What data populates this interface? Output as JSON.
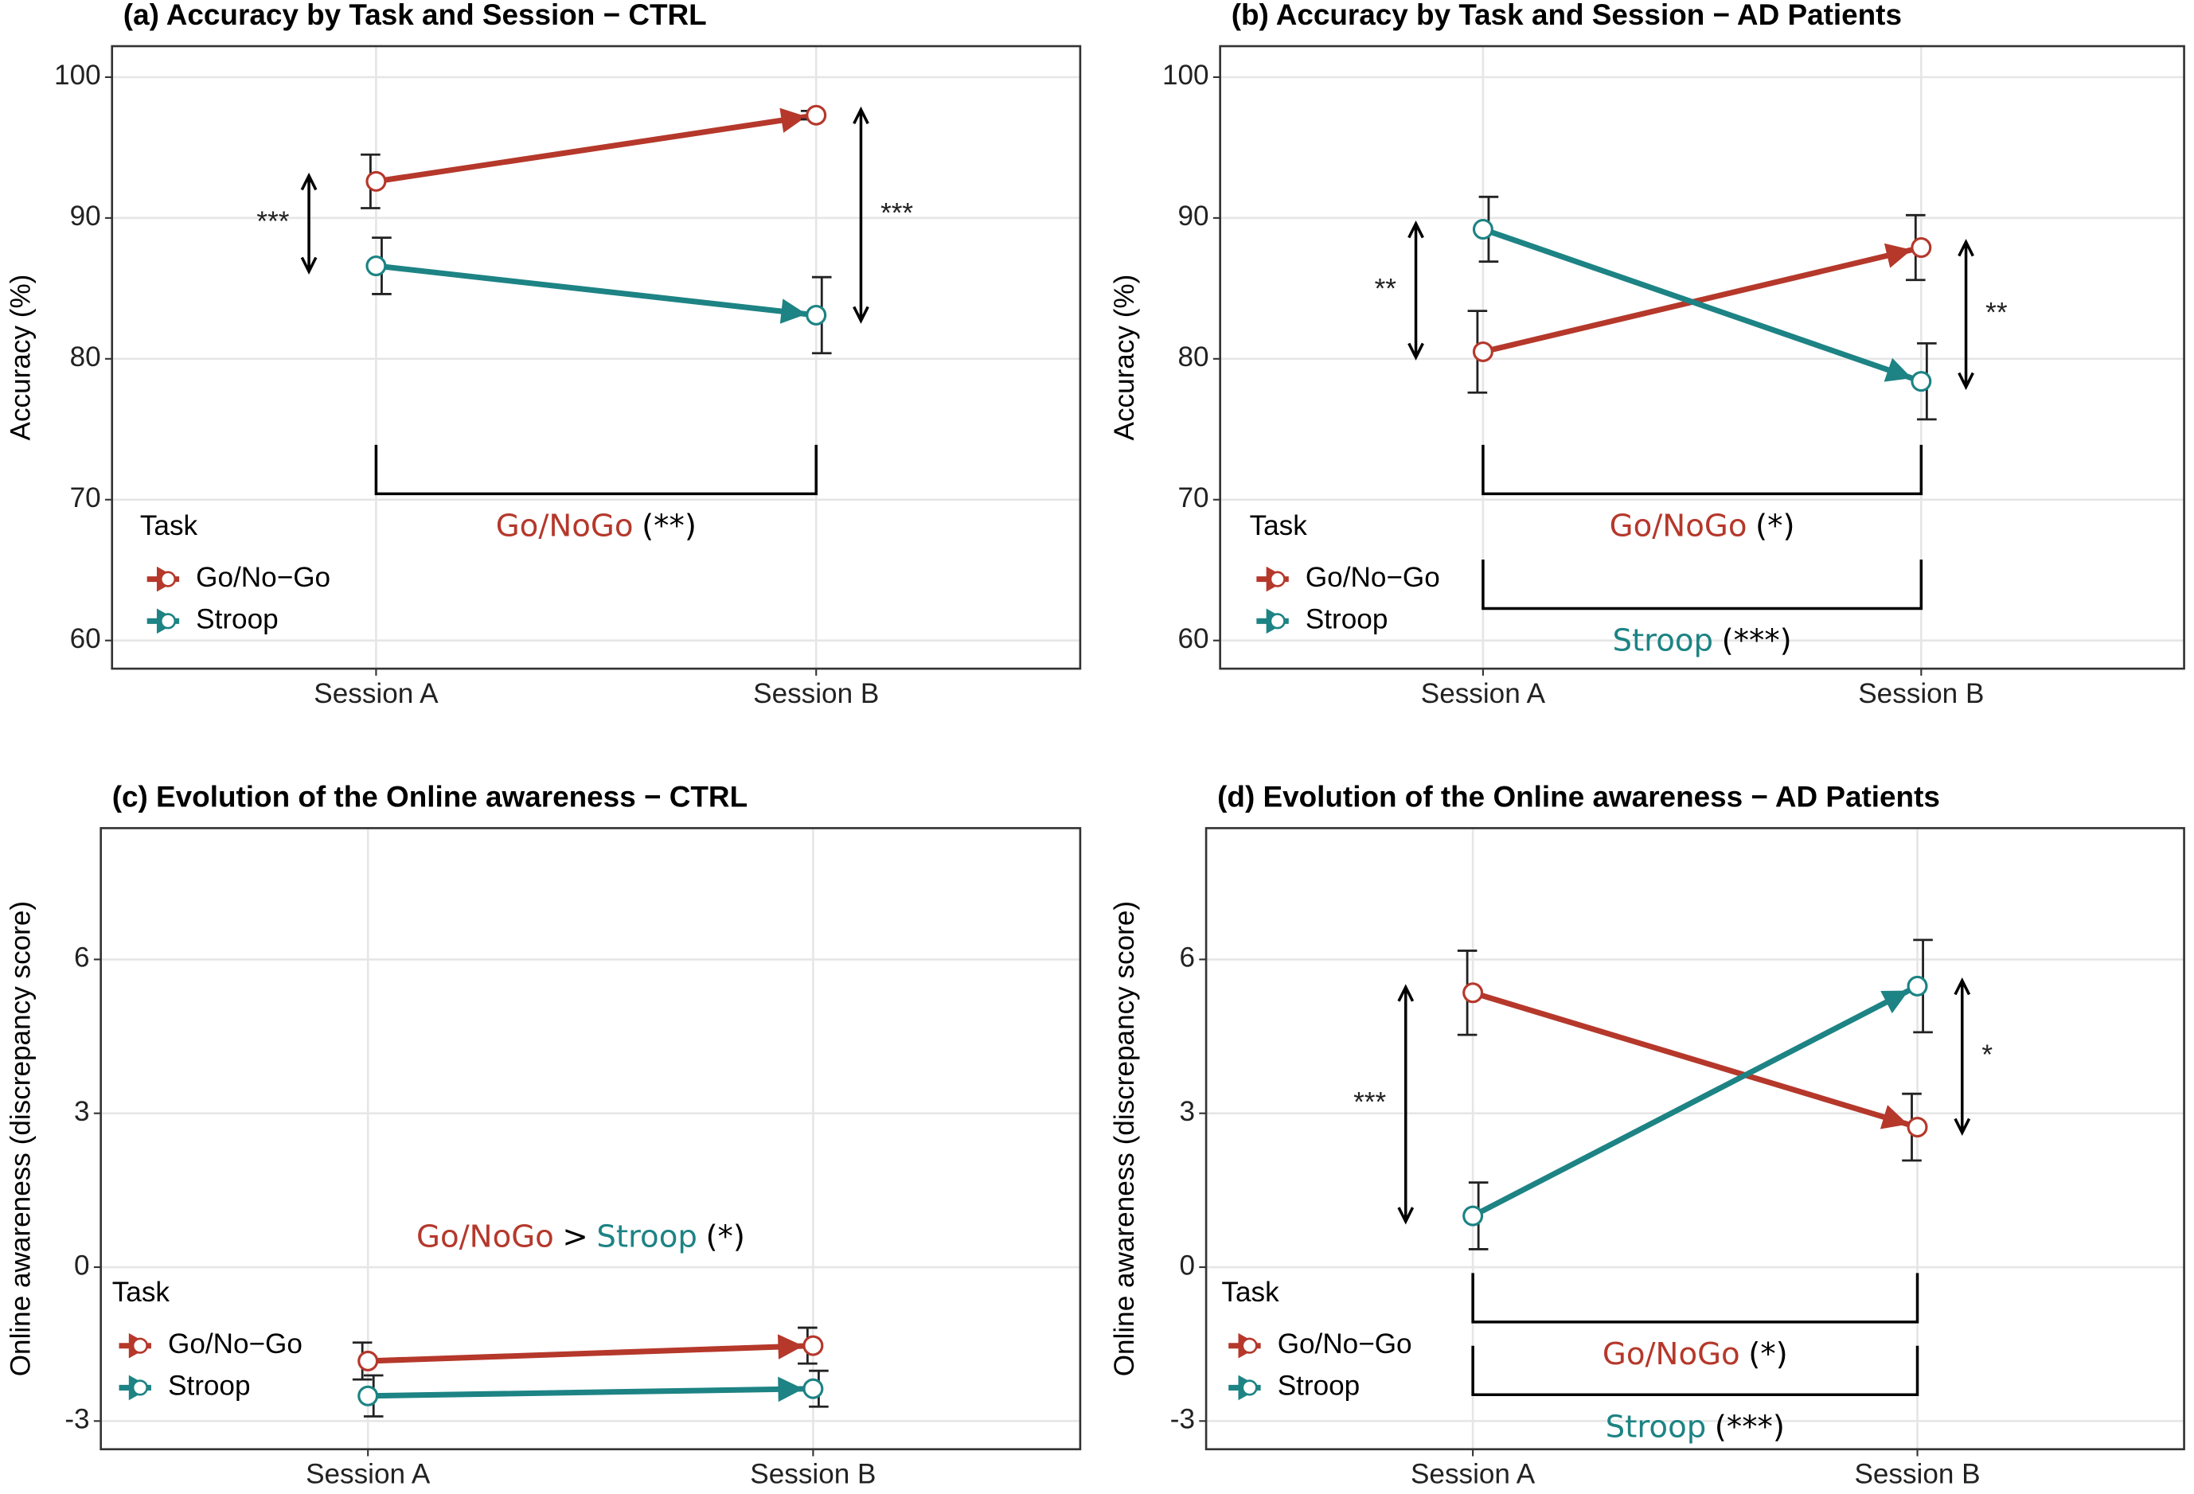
{
  "chart_data": [
    {
      "type": "line",
      "title": "(a) Accuracy by Task and Session − CTRL",
      "ylabel": "Accuracy (%)",
      "categories": [
        "Session A",
        "Session B"
      ],
      "ylim": [
        58,
        102.2
      ],
      "yticks": [
        60,
        70,
        80,
        90,
        100
      ],
      "grid": true,
      "legend_title": "Task",
      "series": [
        {
          "name": "Go/No−Go",
          "color": "#b5382b",
          "values": [
            92.6,
            97.3
          ],
          "errors": [
            1.9,
            0.3
          ]
        },
        {
          "name": "Stroop",
          "color": "#1d8384",
          "values": [
            86.6,
            83.1
          ],
          "errors": [
            2.0,
            2.7
          ]
        }
      ],
      "significance": [
        {
          "at": "Session A",
          "label": "***"
        },
        {
          "at": "Session B",
          "label": "***"
        }
      ],
      "brackets": [
        [
          {
            "text": "Go/NoGo",
            "color": "#b5382b"
          },
          {
            "text": "(**)",
            "color": "#000000"
          }
        ]
      ],
      "annotations": []
    },
    {
      "type": "line",
      "title": "(b) Accuracy by Task and Session − AD Patients",
      "ylabel": "Accuracy (%)",
      "categories": [
        "Session A",
        "Session B"
      ],
      "ylim": [
        58,
        102.2
      ],
      "yticks": [
        60,
        70,
        80,
        90,
        100
      ],
      "grid": true,
      "legend_title": "Task",
      "series": [
        {
          "name": "Go/No−Go",
          "color": "#b5382b",
          "values": [
            80.5,
            87.9
          ],
          "errors": [
            2.9,
            2.3
          ]
        },
        {
          "name": "Stroop",
          "color": "#1d8384",
          "values": [
            89.2,
            78.4
          ],
          "errors": [
            2.3,
            2.7
          ]
        }
      ],
      "significance": [
        {
          "at": "Session A",
          "label": "**"
        },
        {
          "at": "Session B",
          "label": "**"
        }
      ],
      "brackets": [
        [
          {
            "text": "Go/NoGo",
            "color": "#b5382b"
          },
          {
            "text": "(*)",
            "color": "#000000"
          }
        ],
        [
          {
            "text": "Stroop",
            "color": "#1d8384"
          },
          {
            "text": "(***)",
            "color": "#000000"
          }
        ]
      ],
      "annotations": []
    },
    {
      "type": "line",
      "title": "(c) Evolution of the Online awareness − CTRL",
      "ylabel": "Online awareness (discrepancy score)",
      "categories": [
        "Session A",
        "Session B"
      ],
      "ylim": [
        -3.55,
        8.56
      ],
      "yticks": [
        -3,
        0,
        3,
        6
      ],
      "grid": true,
      "legend_title": "Task",
      "series": [
        {
          "name": "Go/No−Go",
          "color": "#b5382b",
          "values": [
            -1.83,
            -1.53
          ],
          "errors": [
            0.36,
            0.35
          ]
        },
        {
          "name": "Stroop",
          "color": "#1d8384",
          "values": [
            -2.51,
            -2.37
          ],
          "errors": [
            0.4,
            0.35
          ]
        }
      ],
      "significance": [],
      "brackets": [],
      "annotations": [
        [
          {
            "text": "Go/NoGo",
            "color": "#b5382b"
          },
          {
            "text": ">",
            "color": "#000000"
          },
          {
            "text": "Stroop",
            "color": "#1d8384"
          },
          {
            "text": "(*)",
            "color": "#000000"
          }
        ]
      ]
    },
    {
      "type": "line",
      "title": "(d) Evolution of the Online awareness − AD Patients",
      "ylabel": "Online awareness (discrepancy score)",
      "categories": [
        "Session A",
        "Session B"
      ],
      "ylim": [
        -3.55,
        8.56
      ],
      "yticks": [
        -3,
        0,
        3,
        6
      ],
      "grid": true,
      "legend_title": "Task",
      "series": [
        {
          "name": "Go/No−Go",
          "color": "#b5382b",
          "values": [
            5.35,
            2.73
          ],
          "errors": [
            0.82,
            0.65
          ]
        },
        {
          "name": "Stroop",
          "color": "#1d8384",
          "values": [
            1.0,
            5.48
          ],
          "errors": [
            0.65,
            0.9
          ]
        }
      ],
      "significance": [
        {
          "at": "Session A",
          "label": "***"
        },
        {
          "at": "Session B",
          "label": "*"
        }
      ],
      "brackets": [
        [
          {
            "text": "Go/NoGo",
            "color": "#b5382b"
          },
          {
            "text": "(*)",
            "color": "#000000"
          }
        ],
        [
          {
            "text": "Stroop",
            "color": "#1d8384"
          },
          {
            "text": "(***)",
            "color": "#000000"
          }
        ]
      ],
      "annotations": []
    }
  ]
}
